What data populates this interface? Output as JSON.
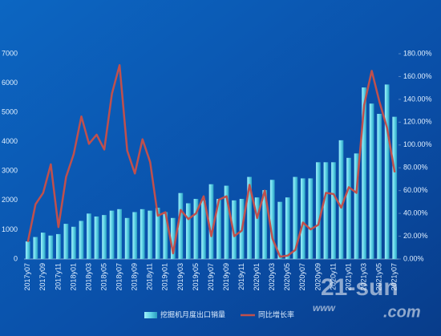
{
  "chart_data": {
    "type": "bar-line",
    "categories": [
      "2017y07",
      null,
      "2017y09",
      null,
      "2017y11",
      null,
      "2018y01",
      null,
      "2018y03",
      null,
      "2018y05",
      null,
      "2018y07",
      null,
      "2018y09",
      null,
      "2018y11",
      null,
      "2019y01",
      null,
      "2019y03",
      null,
      "2019y05",
      null,
      "2019y07",
      null,
      "2019y09",
      null,
      "2019y11",
      null,
      "2020y01",
      null,
      "2020y03",
      null,
      "2020y05",
      null,
      "2020y07",
      null,
      "2020y09",
      null,
      "2020y11",
      null,
      "2021y01",
      null,
      "2021y03",
      null,
      "2021y05",
      null,
      "2021y07"
    ],
    "series": [
      {
        "name": "挖掘机月度出口销量",
        "color": "#5fd3e6",
        "values": [
          600,
          750,
          900,
          800,
          850,
          1200,
          1100,
          1300,
          1550,
          1450,
          1500,
          1650,
          1700,
          1400,
          1600,
          1700,
          1650,
          1750,
          1600,
          1400,
          2250,
          1900,
          2050,
          2000,
          2550,
          2050,
          2500,
          2000,
          2050,
          2800,
          2100,
          2350,
          2700,
          1950,
          2100,
          2800,
          2750,
          2750,
          3300,
          3300,
          3300,
          4050,
          3450,
          3600,
          5850,
          5300,
          4950,
          5950,
          4850
        ]
      },
      {
        "name": "同比增长率",
        "color": "#c0504d",
        "axis": "y2",
        "values": [
          15,
          48,
          58,
          83,
          28,
          72,
          92,
          125,
          101,
          109,
          96,
          145,
          170,
          95,
          75,
          105,
          85,
          38,
          41,
          5,
          43,
          35,
          40,
          55,
          20,
          52,
          55,
          20,
          25,
          65,
          36,
          60,
          18,
          2,
          3,
          8,
          32,
          26,
          30,
          58,
          57,
          45,
          63,
          58,
          135,
          165,
          138,
          115,
          76
        ]
      }
    ],
    "ylim": [
      0,
      7000
    ],
    "yticks": [
      0,
      1000,
      2000,
      3000,
      4000,
      5000,
      6000,
      7000
    ],
    "y2lim": [
      0,
      180
    ],
    "y2ticks": [
      {
        "value": 0,
        "label": "0.00%"
      },
      {
        "value": 20,
        "label": "20.00%"
      },
      {
        "value": 40,
        "label": "40.00%"
      },
      {
        "value": 60,
        "label": "60.00%"
      },
      {
        "value": 80,
        "label": "80.00%"
      },
      {
        "value": 100,
        "label": "100.00%"
      },
      {
        "value": 120,
        "label": "120.00%"
      },
      {
        "value": 140,
        "label": "140.00%"
      },
      {
        "value": 160,
        "label": "160.00%"
      },
      {
        "value": 180,
        "label": "180.00%"
      }
    ],
    "legend": "bottom",
    "watermark": [
      "21-sun",
      "www",
      ".com"
    ]
  }
}
